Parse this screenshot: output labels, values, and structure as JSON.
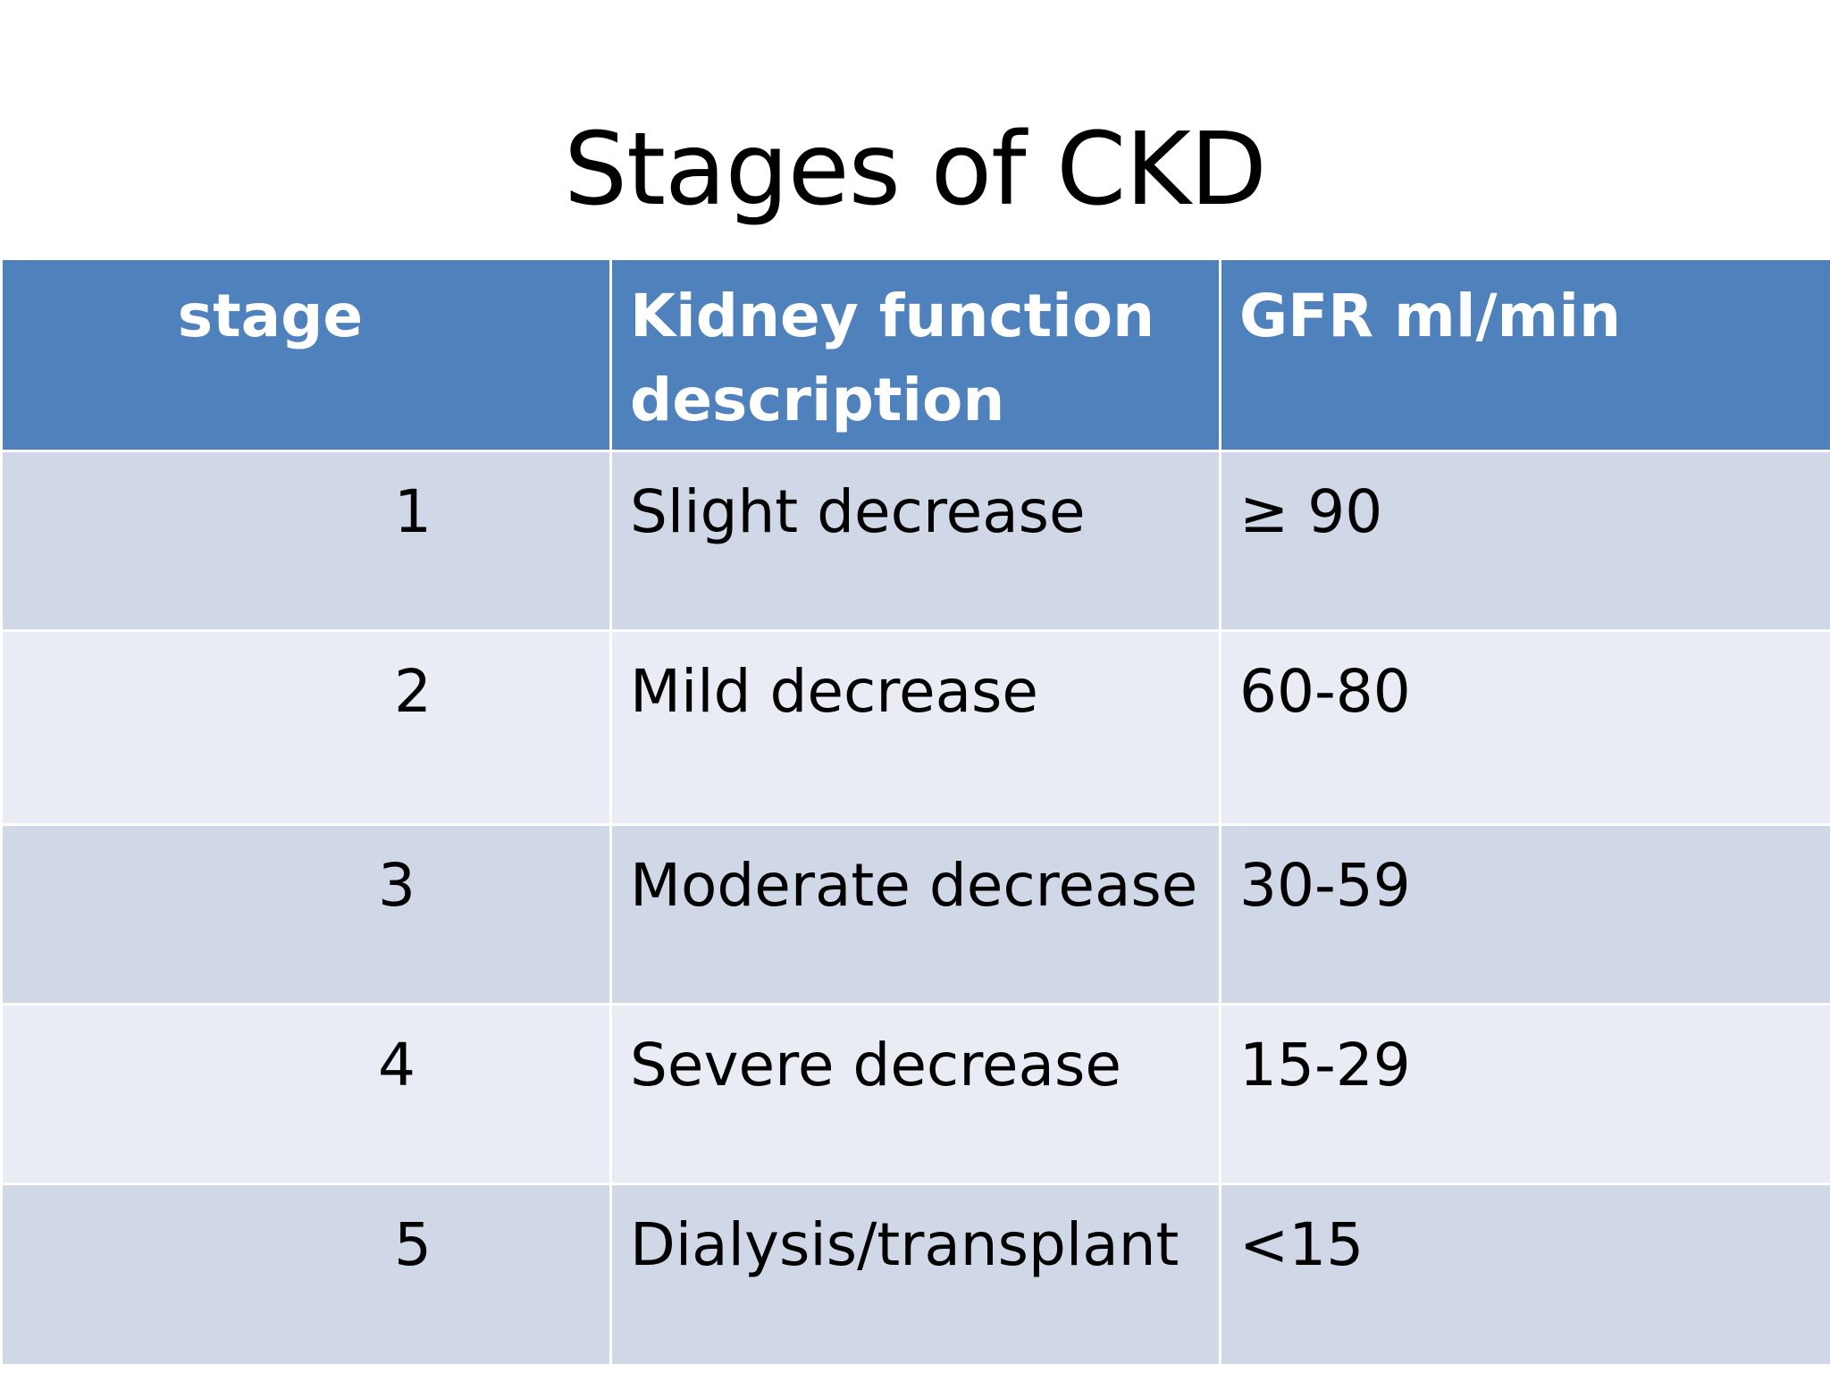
{
  "slide": {
    "title": "Stages of CKD"
  },
  "table": {
    "headers": {
      "stage": "stage",
      "description_line1": "Kidney function",
      "description_line2": "description",
      "gfr": "GFR ml/min"
    },
    "rows": [
      {
        "stage": "1",
        "description": "Slight decrease",
        "gfr": "≥ 90"
      },
      {
        "stage": "2",
        "description": "Mild decrease",
        "gfr": "60-80"
      },
      {
        "stage": "3",
        "description": "Moderate decrease",
        "gfr": "30-59"
      },
      {
        "stage": "4",
        "description": "Severe decrease",
        "gfr": "15-29"
      },
      {
        "stage": "5",
        "description": "Dialysis/transplant",
        "gfr": "<15"
      }
    ]
  },
  "colors": {
    "header_bg": "#4f81bd",
    "row_odd_bg": "#d0d8e8",
    "row_even_bg": "#e9ebf5",
    "header_text": "#ffffff",
    "body_text": "#000000"
  }
}
